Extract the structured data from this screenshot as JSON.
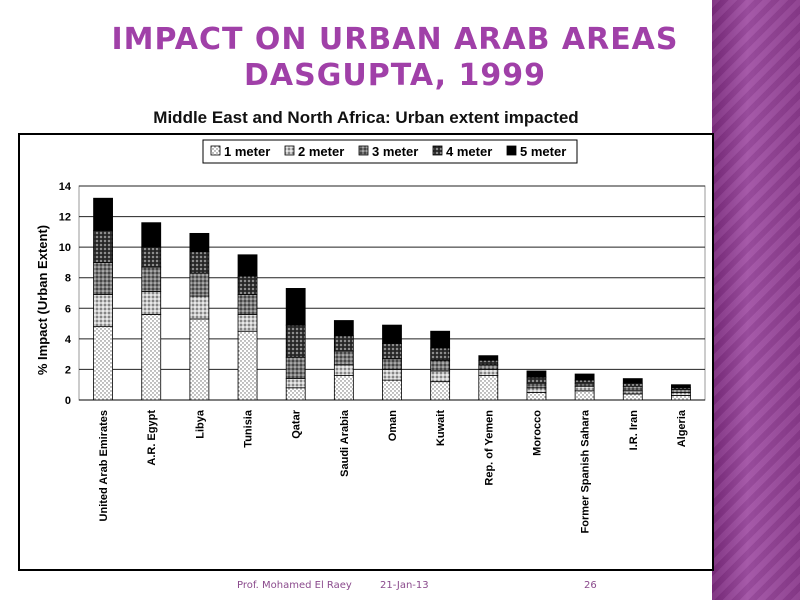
{
  "slide": {
    "title_line1": "IMPACT ON URBAN ARAB AREAS",
    "title_line2": "DASGUPTA, 1999",
    "footer_author": "Prof. Mohamed El Raey",
    "footer_date": "21-Jan-13",
    "page_number": "26"
  },
  "chart_data": {
    "type": "bar",
    "stacked": true,
    "title": "Middle East and North Africa: Urban extent impacted",
    "xlabel": "",
    "ylabel": "% Impact (Urban Extent)",
    "ylim": [
      0,
      14
    ],
    "yticks": [
      0,
      2,
      4,
      6,
      8,
      10,
      12,
      14
    ],
    "grid": true,
    "legend_position": "top",
    "categories": [
      "United Arab Emirates",
      "A.R. Egypt",
      "Libya",
      "Tunisia",
      "Qatar",
      "Saudi Arabia",
      "Oman",
      "Kuwait",
      "Rep. of Yemen",
      "Morocco",
      "Former Spanish Sahara",
      "I.R. Iran",
      "Algeria"
    ],
    "series": [
      {
        "name": "1 meter",
        "values": [
          4.8,
          5.6,
          5.3,
          4.5,
          0.8,
          1.6,
          1.3,
          1.2,
          1.6,
          0.5,
          0.6,
          0.4,
          0.3
        ]
      },
      {
        "name": "2 meter",
        "values": [
          2.1,
          1.5,
          1.5,
          1.1,
          0.6,
          0.7,
          0.7,
          0.7,
          0.4,
          0.3,
          0.3,
          0.2,
          0.2
        ]
      },
      {
        "name": "3 meter",
        "values": [
          2.1,
          1.6,
          1.5,
          1.3,
          1.4,
          0.9,
          0.7,
          0.7,
          0.3,
          0.3,
          0.2,
          0.3,
          0.2
        ]
      },
      {
        "name": "4 meter",
        "values": [
          2.1,
          1.3,
          1.4,
          1.2,
          2.1,
          1.0,
          1.0,
          0.8,
          0.3,
          0.4,
          0.2,
          0.2,
          0.1
        ]
      },
      {
        "name": "5 meter",
        "values": [
          2.1,
          1.6,
          1.2,
          1.4,
          2.4,
          1.0,
          1.2,
          1.1,
          0.3,
          0.4,
          0.4,
          0.3,
          0.2
        ]
      }
    ]
  }
}
